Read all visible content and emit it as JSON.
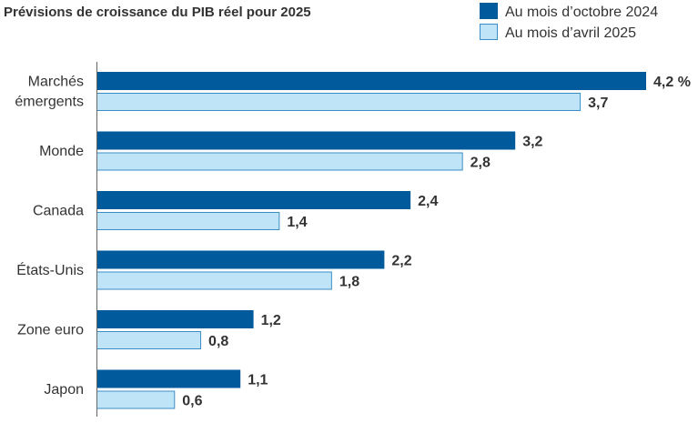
{
  "chart_data": {
    "type": "bar",
    "orientation": "horizontal",
    "title": "Prévisions de croissance du PIB réel pour 2025",
    "categories": [
      [
        "Marchés",
        "émergents"
      ],
      [
        "Monde"
      ],
      [
        "Canada"
      ],
      [
        "États-Unis"
      ],
      [
        "Zone euro"
      ],
      [
        "Japon"
      ]
    ],
    "series": [
      {
        "name": "Au mois d’octobre 2024",
        "color": "#005a9c",
        "values": [
          4.2,
          3.2,
          2.4,
          2.2,
          1.2,
          1.1
        ],
        "labels": [
          "4,2 %",
          "3,2",
          "2,4",
          "2,2",
          "1,2",
          "1,1"
        ]
      },
      {
        "name": "Au mois d’avril 2025",
        "color": "#bfe4f8",
        "stroke": "#3a8ec8",
        "values": [
          3.7,
          2.8,
          1.4,
          1.8,
          0.8,
          0.6
        ],
        "labels": [
          "3,7",
          "2,8",
          "1,4",
          "1,8",
          "0,8",
          "0,6"
        ]
      }
    ],
    "xlim": [
      0,
      4.2
    ],
    "legend_position": "top-right",
    "grid": false
  }
}
